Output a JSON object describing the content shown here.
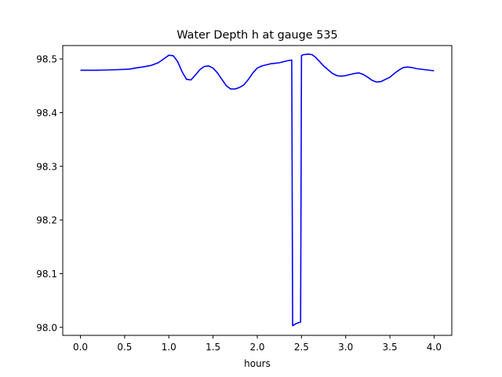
{
  "chart_data": {
    "type": "line",
    "title": "Water Depth h at gauge 535",
    "xlabel": "hours",
    "ylabel": "",
    "xlim": [
      -0.2,
      4.2
    ],
    "ylim": [
      97.985,
      98.525
    ],
    "xticks": [
      0.0,
      0.5,
      1.0,
      1.5,
      2.0,
      2.5,
      3.0,
      3.5,
      4.0
    ],
    "xtick_labels": [
      "0.0",
      "0.5",
      "1.0",
      "1.5",
      "2.0",
      "2.5",
      "3.0",
      "3.5",
      "4.0"
    ],
    "yticks": [
      98.0,
      98.1,
      98.2,
      98.3,
      98.4,
      98.5
    ],
    "ytick_labels": [
      "98.0",
      "98.1",
      "98.2",
      "98.3",
      "98.4",
      "98.5"
    ],
    "grid": false,
    "line_color": "#0000ff",
    "series": [
      {
        "x": [
          0.0,
          0.2,
          0.4,
          0.55,
          0.62,
          0.7,
          0.8,
          0.88,
          0.95,
          1.0,
          1.05,
          1.1,
          1.15,
          1.2,
          1.25,
          1.3,
          1.35,
          1.4,
          1.45,
          1.5,
          1.55,
          1.6,
          1.65,
          1.7,
          1.75,
          1.8,
          1.85,
          1.9,
          1.95,
          2.0,
          2.05,
          2.1,
          2.15,
          2.2,
          2.25,
          2.3,
          2.35,
          2.39,
          2.4,
          2.44,
          2.49,
          2.5,
          2.52,
          2.58,
          2.62,
          2.66,
          2.7,
          2.75,
          2.8,
          2.85,
          2.9,
          2.95,
          3.0,
          3.05,
          3.1,
          3.15,
          3.2,
          3.25,
          3.3,
          3.35,
          3.4,
          3.45,
          3.5,
          3.55,
          3.6,
          3.65,
          3.7,
          3.75,
          3.8,
          3.9,
          4.0
        ],
        "y": [
          98.479,
          98.479,
          98.48,
          98.481,
          98.483,
          98.485,
          98.488,
          98.493,
          98.501,
          98.507,
          98.506,
          98.495,
          98.476,
          98.462,
          98.461,
          98.47,
          98.48,
          98.486,
          98.487,
          98.483,
          98.474,
          98.462,
          98.45,
          98.444,
          98.444,
          98.447,
          98.452,
          98.462,
          98.474,
          98.483,
          98.487,
          98.489,
          98.491,
          98.492,
          98.493,
          98.495,
          98.497,
          98.498,
          98.003,
          98.007,
          98.01,
          98.506,
          98.508,
          98.509,
          98.508,
          98.503,
          98.496,
          98.487,
          98.48,
          98.473,
          98.469,
          98.468,
          98.469,
          98.471,
          98.473,
          98.474,
          98.471,
          98.466,
          98.46,
          98.457,
          98.458,
          98.462,
          98.466,
          98.473,
          98.479,
          98.484,
          98.485,
          98.484,
          98.482,
          98.48,
          98.478
        ]
      }
    ]
  }
}
